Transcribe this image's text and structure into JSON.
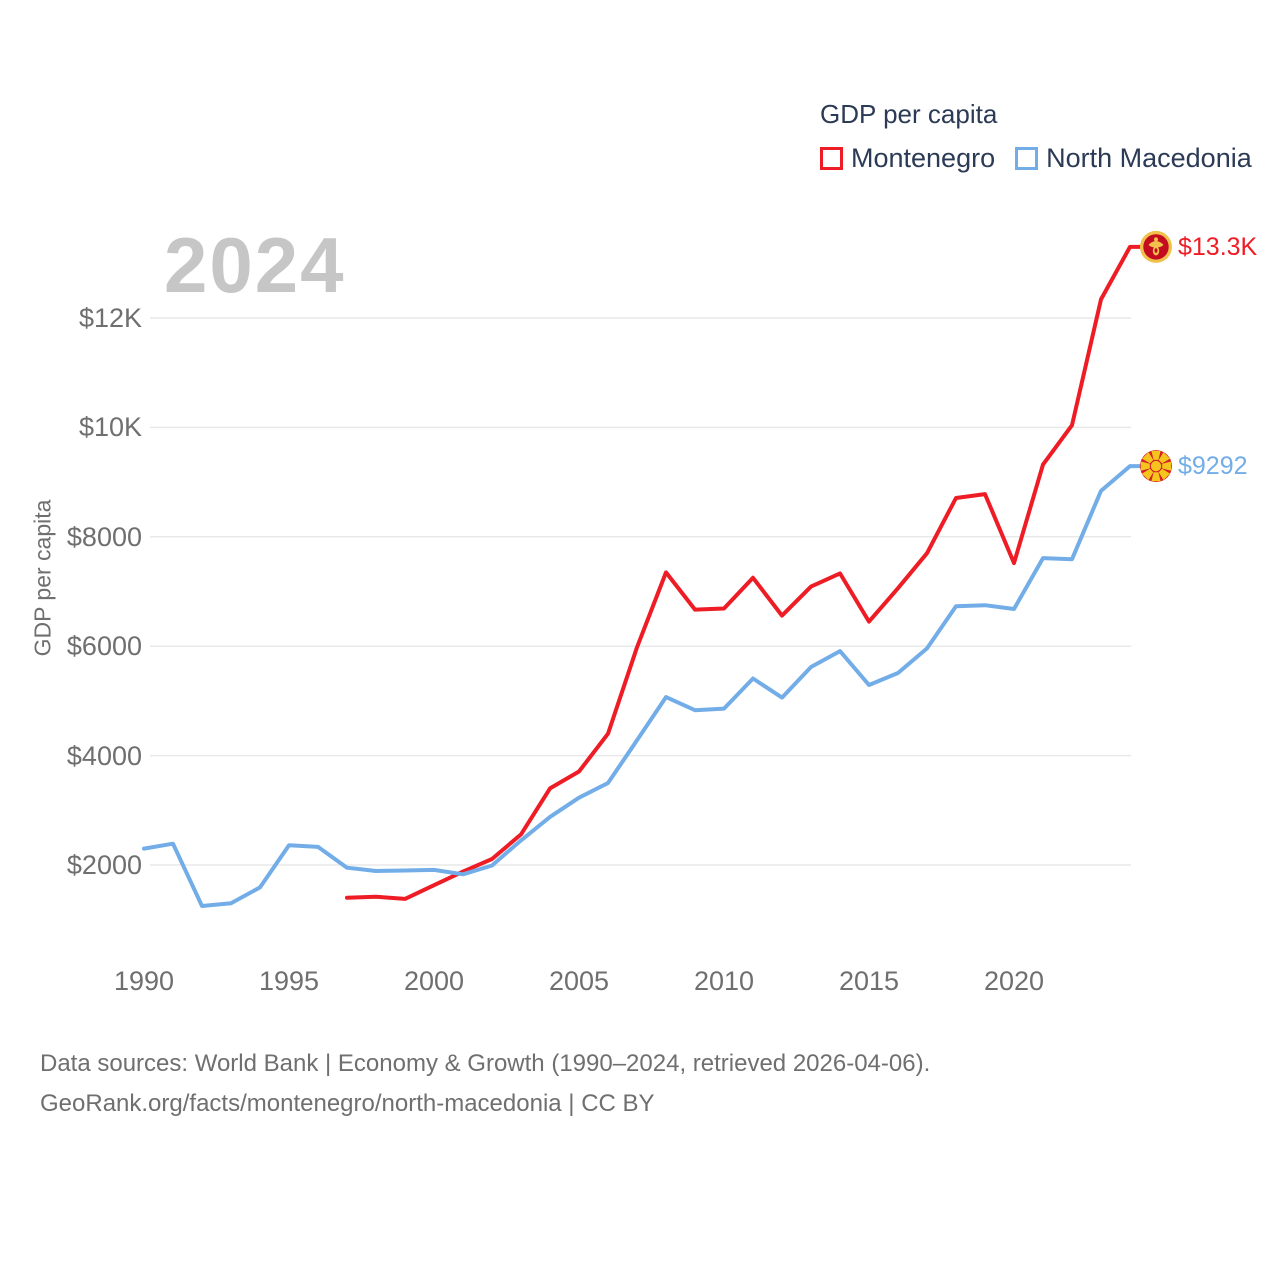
{
  "legend": {
    "title": "GDP per capita",
    "items": [
      {
        "label": "Montenegro",
        "color": "#ee1c25"
      },
      {
        "label": "North Macedonia",
        "color": "#72ade8"
      }
    ]
  },
  "watermark_year": "2024",
  "y_axis": {
    "title": "GDP per capita",
    "ticks": [
      {
        "label": "$2000",
        "value": 2000
      },
      {
        "label": "$4000",
        "value": 4000
      },
      {
        "label": "$6000",
        "value": 6000
      },
      {
        "label": "$8000",
        "value": 8000
      },
      {
        "label": "$10K",
        "value": 10000
      },
      {
        "label": "$12K",
        "value": 12000
      }
    ]
  },
  "x_axis": {
    "ticks": [
      {
        "label": "1990",
        "year": 1990
      },
      {
        "label": "1995",
        "year": 1995
      },
      {
        "label": "2000",
        "year": 2000
      },
      {
        "label": "2005",
        "year": 2005
      },
      {
        "label": "2010",
        "year": 2010
      },
      {
        "label": "2015",
        "year": 2015
      },
      {
        "label": "2020",
        "year": 2020
      }
    ]
  },
  "footer": {
    "line1": "Data sources: World Bank | Economy & Growth (1990–2024, retrieved 2026-04-06).",
    "line2": "GeoRank.org/facts/montenegro/north-macedonia | CC BY"
  },
  "chart_data": {
    "type": "line",
    "title": "GDP per capita",
    "ylabel": "GDP per capita",
    "x_range": [
      1990,
      2024
    ],
    "ylim": [
      1000,
      13600
    ],
    "grid": "horizontal",
    "legend_position": "top-right",
    "highlight_year": "2024",
    "series": [
      {
        "name": "Montenegro",
        "color": "#ee1c25",
        "flag": "montenegro",
        "start_year": 1997,
        "end_label": "$13.3K",
        "values": [
          1400,
          1420,
          1380,
          1630,
          1880,
          2110,
          2560,
          3400,
          3710,
          4400,
          5980,
          7350,
          6670,
          6690,
          7250,
          6560,
          7090,
          7330,
          6450,
          7060,
          7700,
          8710,
          8780,
          7520,
          9320,
          10040,
          12340,
          13300
        ]
      },
      {
        "name": "North Macedonia",
        "color": "#72ade8",
        "flag": "north-macedonia",
        "start_year": 1990,
        "end_label": "$9292",
        "values": [
          2300,
          2390,
          1250,
          1300,
          1590,
          2360,
          2330,
          1950,
          1890,
          1900,
          1910,
          1830,
          1990,
          2450,
          2880,
          3230,
          3500,
          4280,
          5070,
          4830,
          4860,
          5410,
          5060,
          5620,
          5910,
          5290,
          5510,
          5960,
          6730,
          6750,
          6680,
          7610,
          7590,
          8840,
          9292
        ]
      }
    ]
  }
}
